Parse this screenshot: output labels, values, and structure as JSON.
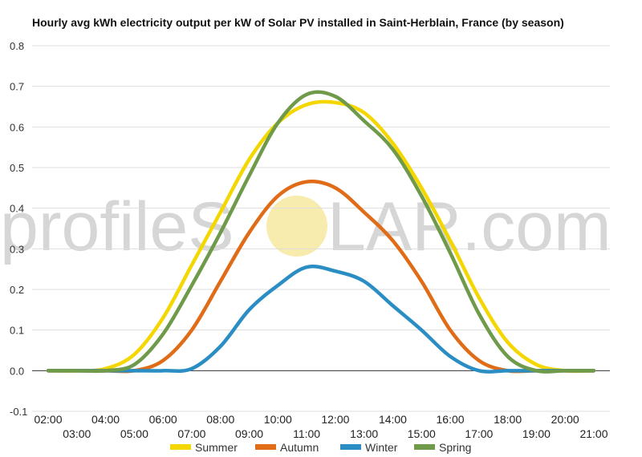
{
  "chart_data": {
    "type": "line",
    "title": "Hourly avg kWh electricity output per kW of Solar PV installed in Saint-Herblain, France (by season)",
    "xlabel": "",
    "ylabel": "",
    "ylim": [
      -0.1,
      0.8
    ],
    "yticks": [
      "-0.1",
      "0.0",
      "0.1",
      "0.2",
      "0.3",
      "0.4",
      "0.5",
      "0.6",
      "0.7",
      "0.8"
    ],
    "categories": [
      "02:00",
      "03:00",
      "04:00",
      "05:00",
      "06:00",
      "07:00",
      "08:00",
      "09:00",
      "10:00",
      "11:00",
      "12:00",
      "13:00",
      "14:00",
      "15:00",
      "16:00",
      "17:00",
      "18:00",
      "19:00",
      "20:00",
      "21:00"
    ],
    "grid": true,
    "legend_position": "bottom",
    "series": [
      {
        "name": "Summer",
        "color": "#f4d600",
        "values": [
          0,
          0,
          0.005,
          0.04,
          0.13,
          0.26,
          0.39,
          0.52,
          0.61,
          0.655,
          0.66,
          0.635,
          0.56,
          0.45,
          0.32,
          0.18,
          0.07,
          0.015,
          0,
          0
        ]
      },
      {
        "name": "Autumn",
        "color": "#e06c18",
        "values": [
          0,
          0,
          0,
          0,
          0.025,
          0.1,
          0.22,
          0.34,
          0.43,
          0.465,
          0.45,
          0.39,
          0.32,
          0.22,
          0.1,
          0.025,
          0,
          0,
          0,
          0
        ]
      },
      {
        "name": "Winter",
        "color": "#2a8ec4",
        "values": [
          0,
          0,
          0,
          0,
          0,
          0.005,
          0.06,
          0.15,
          0.21,
          0.255,
          0.245,
          0.22,
          0.16,
          0.1,
          0.035,
          0,
          0,
          0,
          0,
          0
        ]
      },
      {
        "name": "Spring",
        "color": "#6e9a4a",
        "values": [
          0,
          0,
          0,
          0.015,
          0.09,
          0.21,
          0.34,
          0.48,
          0.61,
          0.68,
          0.675,
          0.615,
          0.545,
          0.43,
          0.29,
          0.14,
          0.035,
          0,
          0,
          0
        ]
      }
    ]
  },
  "watermark": {
    "left": "profileS",
    "right": "LAR.com",
    "sun_color": "#f6e7a0"
  }
}
